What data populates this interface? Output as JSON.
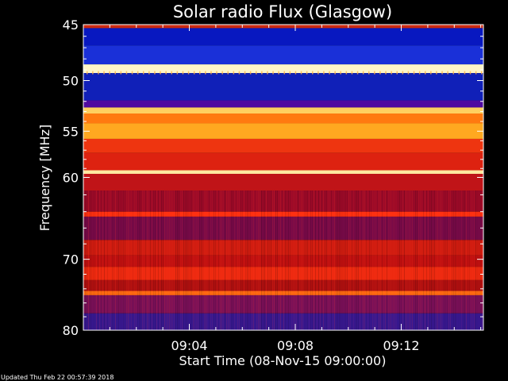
{
  "chart_data": {
    "type": "heatmap",
    "title": "Solar radio Flux (Glasgow)",
    "xlabel": "Start Time (08-Nov-15 09:00:00)",
    "ylabel": "Frequency [MHz]",
    "x_ticks": [
      "09:04",
      "09:08",
      "09:12"
    ],
    "x_tick_minutes": [
      4,
      8,
      12
    ],
    "xlim_minutes": [
      0,
      15.1
    ],
    "y_ticks": [
      45,
      50,
      55,
      60,
      70,
      80
    ],
    "ylim": [
      45,
      80
    ],
    "y_scale": "log",
    "colormap": "blue-red-yellow-white (IDL color table)",
    "frequency_bands": [
      {
        "f_start": 45.0,
        "f_end": 45.3,
        "color": "#cc2a10"
      },
      {
        "f_start": 45.3,
        "f_end": 46.8,
        "color": "#0818c0"
      },
      {
        "f_start": 46.8,
        "f_end": 48.5,
        "color": "#1a30d8"
      },
      {
        "f_start": 48.5,
        "f_end": 49.3,
        "color": "#fff6c8"
      },
      {
        "f_start": 49.3,
        "f_end": 51.9,
        "color": "#1020b8"
      },
      {
        "f_start": 51.9,
        "f_end": 52.6,
        "color": "#500aa0"
      },
      {
        "f_start": 52.6,
        "f_end": 53.2,
        "color": "#ffd060"
      },
      {
        "f_start": 53.2,
        "f_end": 54.2,
        "color": "#ff7a10"
      },
      {
        "f_start": 54.2,
        "f_end": 55.8,
        "color": "#ffa820"
      },
      {
        "f_start": 55.8,
        "f_end": 57.3,
        "color": "#ee3510"
      },
      {
        "f_start": 57.3,
        "f_end": 59.2,
        "color": "#dd2210"
      },
      {
        "f_start": 59.2,
        "f_end": 59.6,
        "color": "#ffe8a0"
      },
      {
        "f_start": 59.6,
        "f_end": 61.5,
        "color": "#c01418"
      },
      {
        "f_start": 61.5,
        "f_end": 64.0,
        "color": "#9c0a28"
      },
      {
        "f_start": 64.0,
        "f_end": 64.6,
        "color": "#ff3010"
      },
      {
        "f_start": 64.6,
        "f_end": 67.5,
        "color": "#780a48"
      },
      {
        "f_start": 67.5,
        "f_end": 69.5,
        "color": "#d01c10"
      },
      {
        "f_start": 69.5,
        "f_end": 71.0,
        "color": "#c01010"
      },
      {
        "f_start": 71.0,
        "f_end": 72.8,
        "color": "#ee2a10"
      },
      {
        "f_start": 72.8,
        "f_end": 74.3,
        "color": "#b01010"
      },
      {
        "f_start": 74.3,
        "f_end": 74.9,
        "color": "#ff6a10"
      },
      {
        "f_start": 74.9,
        "f_end": 77.5,
        "color": "#7a1058"
      },
      {
        "f_start": 77.5,
        "f_end": 80.0,
        "color": "#381890"
      }
    ]
  },
  "footer": {
    "updated": "Updated Thu Feb 22 00:57:39 2018"
  },
  "colors": {
    "background": "#000000",
    "foreground": "#ffffff"
  }
}
